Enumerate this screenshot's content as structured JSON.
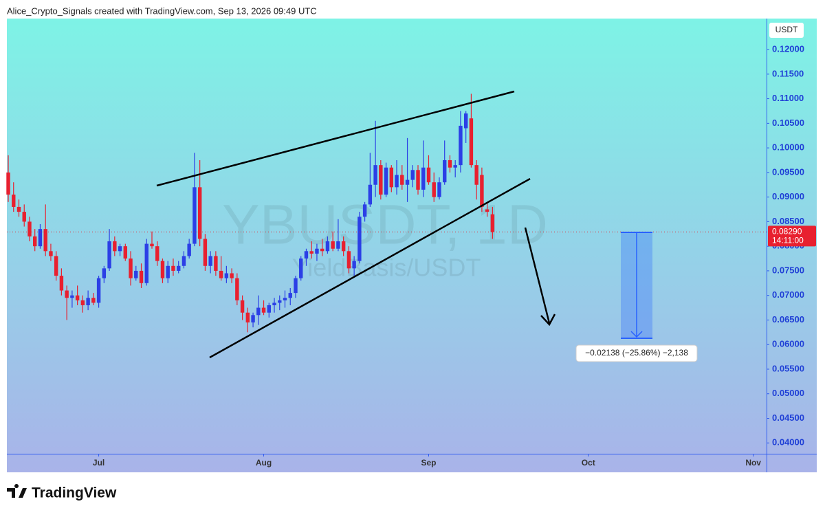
{
  "header": "Alice_Crypto_Signals created with TradingView.com, Sep 13, 2026 09:49 UTC",
  "logo": "TradingView",
  "chart_data": {
    "type": "candlestick",
    "title": "YBUSDT, 1D",
    "subtitle": "YieldBasis/USDT",
    "currency": "USDT",
    "annotation": "−0.02138 (−25.86%) −2,138",
    "last_price": {
      "value": 0.0829,
      "label": "0.08290"
    },
    "countdown": "14:11:00",
    "up_color": "#2b3fe6",
    "down_color": "#e8202f",
    "ylim": [
      0.0378,
      0.1263
    ],
    "yticks": [
      {
        "value": 0.04,
        "label": "0.04000"
      },
      {
        "value": 0.045,
        "label": "0.04500"
      },
      {
        "value": 0.05,
        "label": "0.05000"
      },
      {
        "value": 0.055,
        "label": "0.05500"
      },
      {
        "value": 0.06,
        "label": "0.06000"
      },
      {
        "value": 0.065,
        "label": "0.06500"
      },
      {
        "value": 0.07,
        "label": "0.07000"
      },
      {
        "value": 0.075,
        "label": "0.07500"
      },
      {
        "value": 0.08,
        "label": "0.08000"
      },
      {
        "value": 0.085,
        "label": "0.08500"
      },
      {
        "value": 0.09,
        "label": "0.09000"
      },
      {
        "value": 0.095,
        "label": "0.09500"
      },
      {
        "value": 0.1,
        "label": "0.10000"
      },
      {
        "value": 0.105,
        "label": "0.10500"
      },
      {
        "value": 0.11,
        "label": "0.11000"
      },
      {
        "value": 0.115,
        "label": "0.11500"
      },
      {
        "value": 0.12,
        "label": "0.12000"
      }
    ],
    "xlim": [
      -0.26,
      142.5
    ],
    "xticks": [
      {
        "value": 17,
        "label": "Jul"
      },
      {
        "value": 48,
        "label": "Aug"
      },
      {
        "value": 79,
        "label": "Sep"
      },
      {
        "value": 109,
        "label": "Oct"
      },
      {
        "value": 140,
        "label": "Nov"
      }
    ],
    "ohlc": [
      [
        0.095,
        0.0985,
        0.089,
        0.0905
      ],
      [
        0.0905,
        0.093,
        0.087,
        0.088
      ],
      [
        0.088,
        0.0895,
        0.086,
        0.087
      ],
      [
        0.087,
        0.0885,
        0.084,
        0.085
      ],
      [
        0.085,
        0.086,
        0.081,
        0.082
      ],
      [
        0.082,
        0.0835,
        0.079,
        0.08
      ],
      [
        0.08,
        0.0845,
        0.0795,
        0.0835
      ],
      [
        0.0835,
        0.0885,
        0.078,
        0.079
      ],
      [
        0.079,
        0.0805,
        0.077,
        0.078
      ],
      [
        0.078,
        0.079,
        0.073,
        0.074
      ],
      [
        0.074,
        0.0755,
        0.07,
        0.071
      ],
      [
        0.071,
        0.072,
        0.065,
        0.0695
      ],
      [
        0.0695,
        0.071,
        0.0675,
        0.07
      ],
      [
        0.07,
        0.072,
        0.068,
        0.069
      ],
      [
        0.069,
        0.07,
        0.0665,
        0.068
      ],
      [
        0.068,
        0.071,
        0.067,
        0.0695
      ],
      [
        0.0695,
        0.0705,
        0.068,
        0.0685
      ],
      [
        0.0685,
        0.074,
        0.0675,
        0.0735
      ],
      [
        0.0735,
        0.076,
        0.0725,
        0.0755
      ],
      [
        0.0755,
        0.0835,
        0.075,
        0.081
      ],
      [
        0.081,
        0.082,
        0.078,
        0.079
      ],
      [
        0.079,
        0.0805,
        0.078,
        0.08
      ],
      [
        0.08,
        0.0805,
        0.077,
        0.0775
      ],
      [
        0.0775,
        0.079,
        0.072,
        0.0735
      ],
      [
        0.0735,
        0.076,
        0.073,
        0.075
      ],
      [
        0.075,
        0.0765,
        0.0715,
        0.0725
      ],
      [
        0.0725,
        0.0815,
        0.072,
        0.0805
      ],
      [
        0.0805,
        0.083,
        0.0795,
        0.08
      ],
      [
        0.08,
        0.081,
        0.076,
        0.077
      ],
      [
        0.077,
        0.0775,
        0.0725,
        0.0735
      ],
      [
        0.0735,
        0.077,
        0.0725,
        0.076
      ],
      [
        0.076,
        0.0775,
        0.074,
        0.075
      ],
      [
        0.075,
        0.077,
        0.0745,
        0.076
      ],
      [
        0.076,
        0.079,
        0.0755,
        0.078
      ],
      [
        0.078,
        0.0815,
        0.0775,
        0.0805
      ],
      [
        0.0805,
        0.099,
        0.08,
        0.092
      ],
      [
        0.092,
        0.0975,
        0.08,
        0.0815
      ],
      [
        0.0815,
        0.0825,
        0.075,
        0.076
      ],
      [
        0.076,
        0.079,
        0.0745,
        0.078
      ],
      [
        0.078,
        0.079,
        0.074,
        0.075
      ],
      [
        0.075,
        0.078,
        0.073,
        0.0735
      ],
      [
        0.0735,
        0.076,
        0.0725,
        0.0745
      ],
      [
        0.0745,
        0.0755,
        0.0725,
        0.0735
      ],
      [
        0.0735,
        0.0745,
        0.068,
        0.069
      ],
      [
        0.069,
        0.07,
        0.065,
        0.0665
      ],
      [
        0.0665,
        0.0675,
        0.0625,
        0.0645
      ],
      [
        0.0645,
        0.0665,
        0.0635,
        0.066
      ],
      [
        0.066,
        0.07,
        0.064,
        0.0675
      ],
      [
        0.0675,
        0.069,
        0.066,
        0.0665
      ],
      [
        0.0665,
        0.0685,
        0.0655,
        0.068
      ],
      [
        0.068,
        0.0695,
        0.0665,
        0.0685
      ],
      [
        0.0685,
        0.07,
        0.067,
        0.069
      ],
      [
        0.069,
        0.071,
        0.0675,
        0.0695
      ],
      [
        0.0695,
        0.0715,
        0.068,
        0.0705
      ],
      [
        0.0705,
        0.074,
        0.0695,
        0.0735
      ],
      [
        0.0735,
        0.078,
        0.073,
        0.0775
      ],
      [
        0.0775,
        0.0795,
        0.076,
        0.079
      ],
      [
        0.079,
        0.081,
        0.0775,
        0.0785
      ],
      [
        0.0785,
        0.0805,
        0.077,
        0.0795
      ],
      [
        0.0795,
        0.0815,
        0.078,
        0.079
      ],
      [
        0.079,
        0.082,
        0.0785,
        0.081
      ],
      [
        0.081,
        0.083,
        0.079,
        0.0795
      ],
      [
        0.0795,
        0.0855,
        0.079,
        0.081
      ],
      [
        0.081,
        0.082,
        0.078,
        0.079
      ],
      [
        0.079,
        0.08,
        0.0745,
        0.0755
      ],
      [
        0.0755,
        0.078,
        0.074,
        0.077
      ],
      [
        0.077,
        0.087,
        0.0765,
        0.086
      ],
      [
        0.086,
        0.089,
        0.085,
        0.0885
      ],
      [
        0.0885,
        0.099,
        0.088,
        0.0925
      ],
      [
        0.0925,
        0.1055,
        0.09,
        0.0965
      ],
      [
        0.0965,
        0.0975,
        0.0895,
        0.0905
      ],
      [
        0.0905,
        0.097,
        0.09,
        0.096
      ],
      [
        0.096,
        0.0965,
        0.091,
        0.092
      ],
      [
        0.092,
        0.0975,
        0.0905,
        0.0945
      ],
      [
        0.0945,
        0.0965,
        0.0915,
        0.0925
      ],
      [
        0.0925,
        0.102,
        0.089,
        0.0935
      ],
      [
        0.0935,
        0.0965,
        0.092,
        0.0955
      ],
      [
        0.0955,
        0.0965,
        0.0905,
        0.0915
      ],
      [
        0.0915,
        0.1015,
        0.09,
        0.096
      ],
      [
        0.096,
        0.0985,
        0.0925,
        0.093
      ],
      [
        0.093,
        0.095,
        0.089,
        0.09
      ],
      [
        0.09,
        0.094,
        0.0895,
        0.093
      ],
      [
        0.093,
        0.1015,
        0.0925,
        0.0975
      ],
      [
        0.0975,
        0.0985,
        0.095,
        0.096
      ],
      [
        0.096,
        0.0975,
        0.094,
        0.0965
      ],
      [
        0.0965,
        0.1075,
        0.095,
        0.1045
      ],
      [
        0.104,
        0.1075,
        0.101,
        0.107
      ],
      [
        0.106,
        0.111,
        0.096,
        0.0965
      ],
      [
        0.0965,
        0.0975,
        0.0895,
        0.0925
      ],
      [
        0.0945,
        0.096,
        0.087,
        0.088
      ],
      [
        0.0875,
        0.089,
        0.086,
        0.087
      ],
      [
        0.0865,
        0.088,
        0.0815,
        0.0829
      ]
    ]
  }
}
